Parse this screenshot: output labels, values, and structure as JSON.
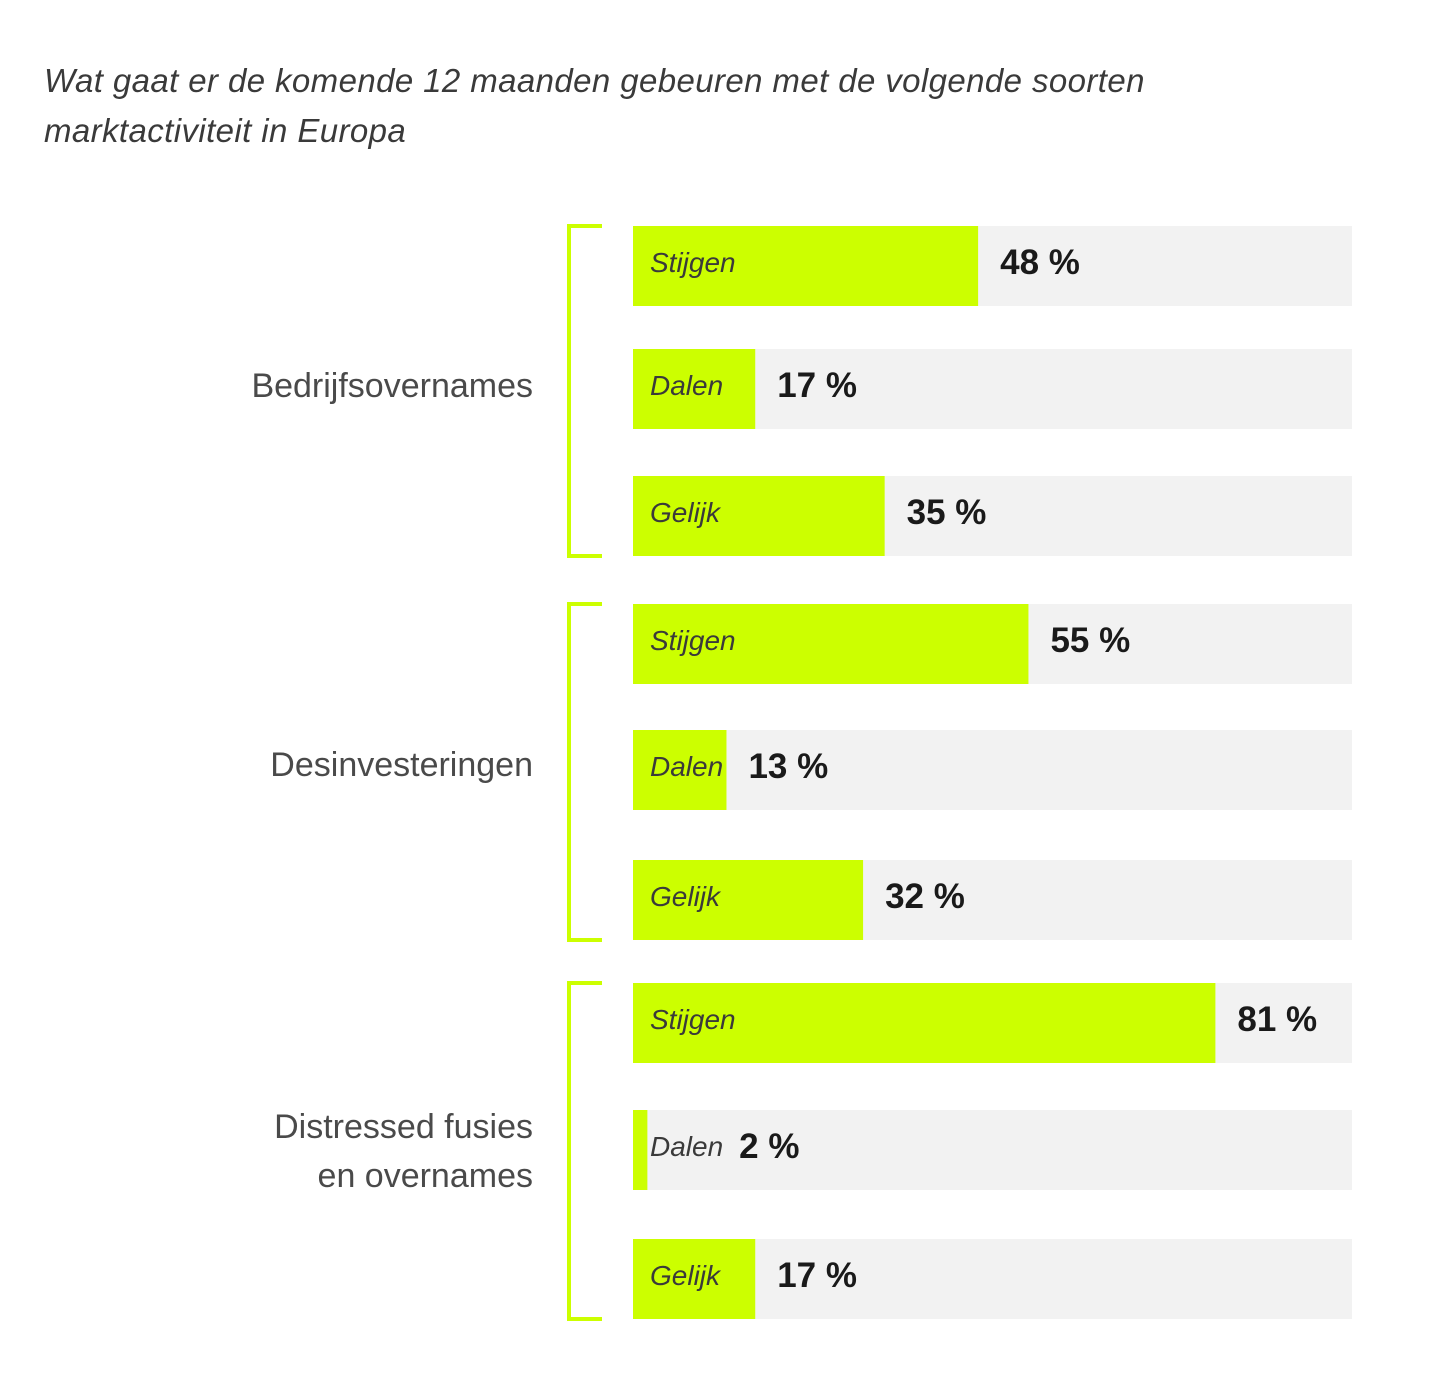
{
  "title": "Wat gaat er de komende 12 maanden gebeuren met de volgende soorten marktactiviteit in Europa",
  "chart_data": {
    "type": "bar",
    "orientation": "horizontal",
    "title": "Wat gaat er de komende 12 maanden gebeuren met de volgende soorten marktactiviteit in Europa",
    "xlim": [
      0,
      100
    ],
    "unit": "%",
    "grid": false,
    "legend": "none",
    "colors": {
      "bar": "#CCFF00",
      "track": "#F2F2F2",
      "bracket": "#CCFF00"
    },
    "groups": [
      {
        "label": [
          "Bedrijfsovernames"
        ],
        "bars": [
          {
            "label": "Stijgen",
            "value": 48,
            "value_label": "48 %"
          },
          {
            "label": "Dalen",
            "value": 17,
            "value_label": "17  %"
          },
          {
            "label": "Gelijk",
            "value": 35,
            "value_label": "35 %"
          }
        ]
      },
      {
        "label": [
          "Desinvesteringen"
        ],
        "bars": [
          {
            "label": "Stijgen",
            "value": 55,
            "value_label": "55 %"
          },
          {
            "label": "Dalen",
            "value": 13,
            "value_label": "13 %"
          },
          {
            "label": "Gelijk",
            "value": 32,
            "value_label": "32 %"
          }
        ]
      },
      {
        "label": [
          "Distressed fusies",
          "en overnames"
        ],
        "bars": [
          {
            "label": "Stijgen",
            "value": 81,
            "value_label": "81 %"
          },
          {
            "label": "Dalen",
            "value": 2,
            "value_label": "2 %"
          },
          {
            "label": "Gelijk",
            "value": 17,
            "value_label": "17  %"
          }
        ]
      }
    ]
  }
}
